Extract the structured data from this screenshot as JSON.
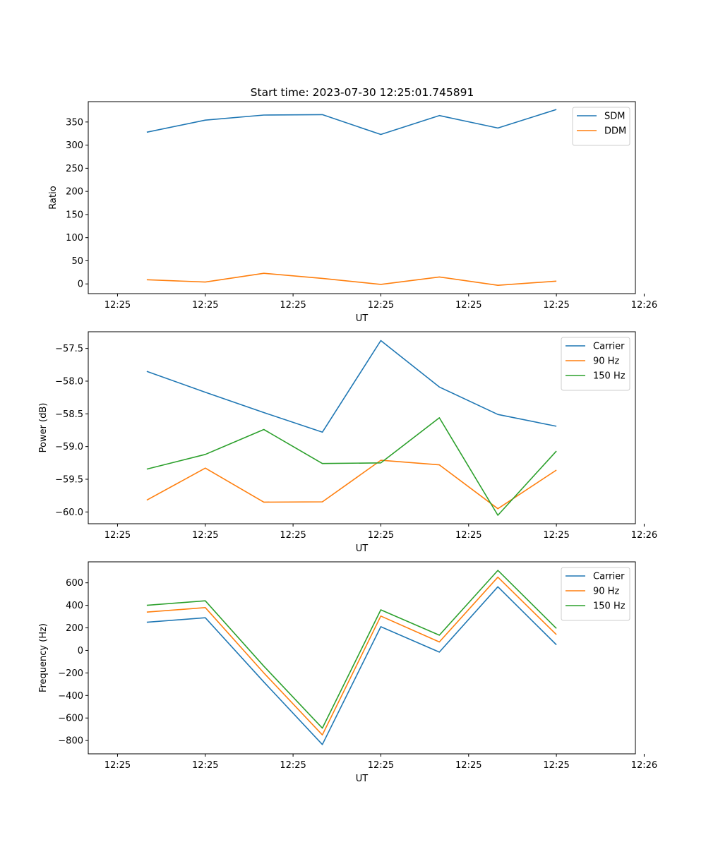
{
  "figure": {
    "title": "Start time: 2023-07-30 12:25:01.745891"
  },
  "chart_data": [
    {
      "type": "line",
      "title": "Start time: 2023-07-30 12:25:01.745891",
      "xlabel": "UT",
      "ylabel": "Ratio",
      "xlim": [
        -0.5,
        8.85
      ],
      "ylim": [
        -21,
        394
      ],
      "x": [
        0.5,
        1.5,
        2.5,
        3.5,
        4.5,
        5.5,
        6.5,
        7.5
      ],
      "xticks": [
        0.0,
        1.5,
        3.0,
        4.5,
        6.0,
        7.5,
        9.0
      ],
      "xtick_labels": [
        "12:25",
        "12:25",
        "12:25",
        "12:25",
        "12:25",
        "12:25",
        "12:26"
      ],
      "yticks": [
        0,
        50,
        100,
        150,
        200,
        250,
        300,
        350
      ],
      "ytick_labels": [
        "0",
        "50",
        "100",
        "150",
        "200",
        "250",
        "300",
        "350"
      ],
      "legend_position": "top-right",
      "series": [
        {
          "name": "SDM",
          "color": "#1f77b4",
          "values": [
            328,
            354,
            365,
            366,
            323,
            364,
            337,
            377
          ]
        },
        {
          "name": "DDM",
          "color": "#ff7f0e",
          "values": [
            9,
            4,
            23,
            12,
            -1,
            15,
            -3,
            6
          ]
        }
      ]
    },
    {
      "type": "line",
      "xlabel": "UT",
      "ylabel": "Power (dB)",
      "xlim": [
        -0.5,
        8.85
      ],
      "ylim": [
        -60.18,
        -57.245
      ],
      "x": [
        0.5,
        1.5,
        2.5,
        3.5,
        4.5,
        5.5,
        6.5,
        7.5
      ],
      "xticks": [
        0.0,
        1.5,
        3.0,
        4.5,
        6.0,
        7.5,
        9.0
      ],
      "xtick_labels": [
        "12:25",
        "12:25",
        "12:25",
        "12:25",
        "12:25",
        "12:25",
        "12:26"
      ],
      "yticks": [
        -60.0,
        -59.5,
        -59.0,
        -58.5,
        -58.0,
        -57.5
      ],
      "ytick_labels": [
        "−60.0",
        "−59.5",
        "−59.0",
        "−58.5",
        "−58.0",
        "−57.5"
      ],
      "legend_position": "top-right",
      "series": [
        {
          "name": "Carrier",
          "color": "#1f77b4",
          "values": [
            -57.85,
            -58.17,
            -58.48,
            -58.78,
            -57.38,
            -58.09,
            -58.51,
            -58.69
          ]
        },
        {
          "name": "90 Hz",
          "color": "#ff7f0e",
          "values": [
            -59.82,
            -59.33,
            -59.85,
            -59.845,
            -59.21,
            -59.28,
            -59.95,
            -59.36
          ]
        },
        {
          "name": "150 Hz",
          "color": "#2ca02c",
          "values": [
            -59.345,
            -59.12,
            -58.74,
            -59.26,
            -59.25,
            -58.56,
            -60.05,
            -59.07
          ]
        }
      ]
    },
    {
      "type": "line",
      "xlabel": "UT",
      "ylabel": "Frequency (Hz)",
      "xlim": [
        -0.5,
        8.85
      ],
      "ylim": [
        -918,
        786
      ],
      "x": [
        0.5,
        1.5,
        2.5,
        3.5,
        4.5,
        5.5,
        6.5,
        7.5
      ],
      "xticks": [
        0.0,
        1.5,
        3.0,
        4.5,
        6.0,
        7.5,
        9.0
      ],
      "xtick_labels": [
        "12:25",
        "12:25",
        "12:25",
        "12:25",
        "12:25",
        "12:25",
        "12:26"
      ],
      "yticks": [
        -800,
        -600,
        -400,
        -200,
        0,
        200,
        400,
        600
      ],
      "ytick_labels": [
        "−800",
        "−600",
        "−400",
        "−200",
        "0",
        "200",
        "400",
        "600"
      ],
      "legend_position": "top-right",
      "series": [
        {
          "name": "Carrier",
          "color": "#1f77b4",
          "values": [
            250,
            290,
            -280,
            -835,
            210,
            -15,
            565,
            50
          ]
        },
        {
          "name": "90 Hz",
          "color": "#ff7f0e",
          "values": [
            340,
            380,
            -200,
            -750,
            305,
            75,
            650,
            140
          ]
        },
        {
          "name": "150 Hz",
          "color": "#2ca02c",
          "values": [
            400,
            440,
            -140,
            -690,
            360,
            135,
            710,
            195
          ]
        }
      ]
    }
  ]
}
